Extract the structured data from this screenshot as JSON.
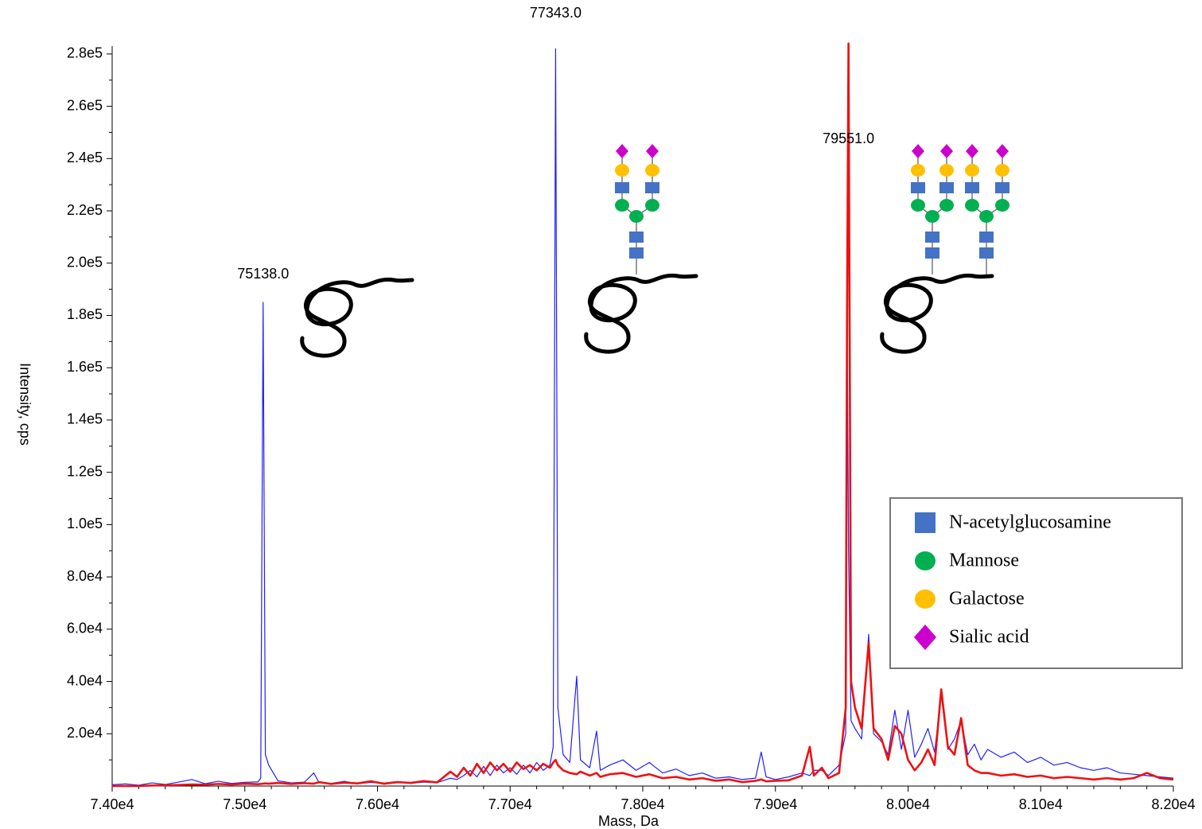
{
  "chart_data": {
    "type": "line",
    "xlabel": "Mass, Da",
    "ylabel": "Intensity, cps",
    "xlim": [
      74000,
      82000
    ],
    "ylim": [
      0,
      283000
    ],
    "xticks": [
      {
        "value": 74000,
        "label": "7.40e4"
      },
      {
        "value": 75000,
        "label": "7.50e4"
      },
      {
        "value": 76000,
        "label": "7.60e4"
      },
      {
        "value": 77000,
        "label": "7.70e4"
      },
      {
        "value": 78000,
        "label": "7.80e4"
      },
      {
        "value": 79000,
        "label": "7.90e4"
      },
      {
        "value": 80000,
        "label": "8.00e4"
      },
      {
        "value": 81000,
        "label": "8.10e4"
      },
      {
        "value": 82000,
        "label": "8.20e4"
      }
    ],
    "yticks": [
      {
        "value": 20000,
        "label": "2.0e4"
      },
      {
        "value": 40000,
        "label": "4.0e4"
      },
      {
        "value": 60000,
        "label": "6.0e4"
      },
      {
        "value": 80000,
        "label": "8.0e4"
      },
      {
        "value": 100000,
        "label": "1.0e5"
      },
      {
        "value": 120000,
        "label": "1.2e5"
      },
      {
        "value": 140000,
        "label": "1.4e5"
      },
      {
        "value": 160000,
        "label": "1.6e5"
      },
      {
        "value": 180000,
        "label": "1.8e5"
      },
      {
        "value": 200000,
        "label": "2.0e5"
      },
      {
        "value": 220000,
        "label": "2.2e5"
      },
      {
        "value": 240000,
        "label": "2.4e5"
      },
      {
        "value": 260000,
        "label": "2.6e5"
      },
      {
        "value": 280000,
        "label": "2.8e5"
      }
    ],
    "peak_labels": [
      {
        "value": 75138,
        "label": "75138.0"
      },
      {
        "value": 77343,
        "label": "77343.0"
      },
      {
        "value": 79551,
        "label": "79551.0"
      }
    ],
    "x": [
      74000,
      74100,
      74200,
      74300,
      74400,
      74500,
      74600,
      74700,
      74800,
      74900,
      75000,
      75100,
      75120,
      75138,
      75155,
      75180,
      75250,
      75350,
      75450,
      75520,
      75560,
      75650,
      75750,
      75850,
      75950,
      76050,
      76150,
      76250,
      76350,
      76450,
      76550,
      76600,
      76650,
      76700,
      76750,
      76800,
      76850,
      76900,
      76950,
      77000,
      77050,
      77100,
      77150,
      77200,
      77250,
      77300,
      77325,
      77343,
      77360,
      77400,
      77450,
      77502,
      77530,
      77600,
      77652,
      77680,
      77750,
      77850,
      77950,
      78050,
      78150,
      78250,
      78350,
      78450,
      78550,
      78650,
      78750,
      78850,
      78893,
      78930,
      79000,
      79100,
      79200,
      79259,
      79290,
      79350,
      79400,
      79480,
      79530,
      79540,
      79551,
      79570,
      79600,
      79650,
      79703,
      79740,
      79800,
      79850,
      79900,
      79950,
      80000,
      80050,
      80100,
      80150,
      80200,
      80250,
      80300,
      80350,
      80400,
      80450,
      80500,
      80550,
      80600,
      80700,
      80800,
      80900,
      81000,
      81100,
      81200,
      81300,
      81400,
      81500,
      81600,
      81700,
      81800,
      81900,
      82000
    ],
    "series": [
      {
        "color": "#1f1fff",
        "values": [
          500,
          800,
          300,
          1200,
          600,
          1500,
          2500,
          900,
          1800,
          1000,
          1400,
          1600,
          3000,
          185000,
          12000,
          8000,
          2000,
          1200,
          1500,
          5000,
          1300,
          1000,
          1800,
          900,
          1400,
          1100,
          1700,
          1000,
          1500,
          1300,
          3000,
          2500,
          4000,
          6000,
          3500,
          7500,
          4000,
          8000,
          5000,
          7000,
          4500,
          8000,
          5000,
          9000,
          6000,
          8000,
          15000,
          282000,
          30000,
          12000,
          9000,
          42000,
          10000,
          7000,
          21000,
          6000,
          8000,
          10000,
          6000,
          9000,
          5000,
          6500,
          4000,
          5000,
          3000,
          3500,
          2500,
          3000,
          13000,
          3500,
          2500,
          3500,
          5000,
          4000,
          6000,
          6000,
          4000,
          8000,
          20000,
          187000,
          90000,
          25000,
          22000,
          18000,
          58000,
          20000,
          17000,
          12000,
          29000,
          14000,
          29000,
          11000,
          16000,
          22000,
          13000,
          35000,
          14000,
          18000,
          25000,
          12000,
          16000,
          10000,
          14000,
          11000,
          13000,
          9000,
          11000,
          8000,
          9000,
          7000,
          6000,
          7000,
          5000,
          4500,
          4000,
          3500,
          3000
        ]
      },
      {
        "color": "#ee1111",
        "values": [
          0,
          0,
          0,
          200,
          300,
          400,
          600,
          500,
          800,
          600,
          900,
          700,
          800,
          900,
          1000,
          900,
          1200,
          800,
          1100,
          900,
          1500,
          800,
          1300,
          1000,
          1800,
          900,
          1500,
          1200,
          1900,
          1400,
          5500,
          3500,
          7000,
          4000,
          8500,
          5000,
          9000,
          6000,
          8500,
          5500,
          9000,
          6500,
          8000,
          6000,
          8500,
          7000,
          9000,
          10000,
          8000,
          6000,
          5000,
          4500,
          5500,
          4000,
          5000,
          3500,
          4500,
          5000,
          3500,
          4500,
          3000,
          3500,
          2500,
          3000,
          2000,
          2500,
          1500,
          2000,
          2500,
          1800,
          2000,
          2200,
          4000,
          15000,
          4000,
          7000,
          3000,
          5000,
          30000,
          180000,
          284000,
          40000,
          30000,
          22000,
          55000,
          22000,
          18000,
          10000,
          23000,
          20000,
          10000,
          6000,
          9000,
          14000,
          8000,
          37000,
          15000,
          12000,
          26000,
          8000,
          6000,
          5000,
          5000,
          4000,
          4500,
          3500,
          4000,
          3000,
          3500,
          3000,
          2500,
          3000,
          2500,
          3000,
          5000,
          3000,
          2500
        ]
      }
    ],
    "symbol_legend": [
      {
        "name": "N-acetylglucosamine",
        "color": "#4472c4",
        "shape": "square"
      },
      {
        "name": "Mannose",
        "color": "#00b050",
        "shape": "circle"
      },
      {
        "name": "Galactose",
        "color": "#ffc000",
        "shape": "circle"
      },
      {
        "name": "Sialic acid",
        "color": "#cc00cc",
        "shape": "diamond"
      }
    ]
  }
}
